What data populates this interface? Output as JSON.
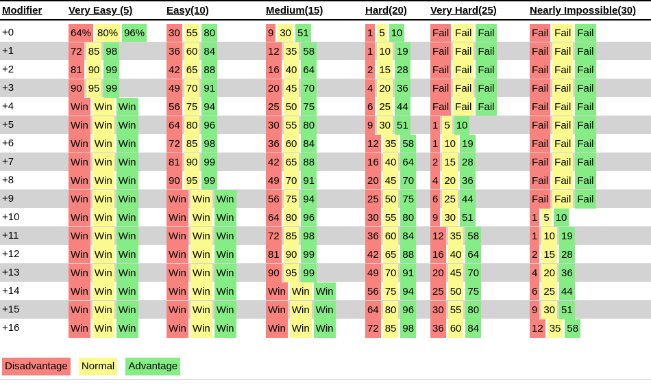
{
  "colors": {
    "disadvantage": "#F8837E",
    "normal": "#FAFA8E",
    "advantage": "#86EC86",
    "row_stripe": "#D3D3D3",
    "rule": "#000000",
    "bottom_rule": "#B9BFC6"
  },
  "chart_data": {
    "type": "table",
    "title": "d20 success probability by modifier, difficulty and roll mode",
    "columns": [
      "Modifier",
      "Very Easy (5)",
      "Easy(10)",
      "Medium(15)",
      "Hard(20)",
      "Very Hard(25)",
      "Nearly Impossible(30)"
    ],
    "value_kinds": [
      "Disadvantage",
      "Normal",
      "Advantage"
    ],
    "rows": [
      {
        "modifier": "+0",
        "cells": [
          [
            "64%",
            "80%",
            "96%"
          ],
          [
            "30",
            "55",
            "80"
          ],
          [
            "9",
            "30",
            "51"
          ],
          [
            "1",
            "5",
            "10"
          ],
          [
            "Fail",
            "Fail",
            "Fail"
          ],
          [
            "Fail",
            "Fail",
            "Fail"
          ]
        ]
      },
      {
        "modifier": "+1",
        "cells": [
          [
            "72",
            "85",
            "98"
          ],
          [
            "36",
            "60",
            "84"
          ],
          [
            "12",
            "35",
            "58"
          ],
          [
            "1",
            "10",
            "19"
          ],
          [
            "Fail",
            "Fail",
            "Fail"
          ],
          [
            "Fail",
            "Fail",
            "Fail"
          ]
        ]
      },
      {
        "modifier": "+2",
        "cells": [
          [
            "81",
            "90",
            "99"
          ],
          [
            "42",
            "65",
            "88"
          ],
          [
            "16",
            "40",
            "64"
          ],
          [
            "2",
            "15",
            "28"
          ],
          [
            "Fail",
            "Fail",
            "Fail"
          ],
          [
            "Fail",
            "Fail",
            "Fail"
          ]
        ]
      },
      {
        "modifier": "+3",
        "cells": [
          [
            "90",
            "95",
            "99"
          ],
          [
            "49",
            "70",
            "91"
          ],
          [
            "20",
            "45",
            "70"
          ],
          [
            "4",
            "20",
            "36"
          ],
          [
            "Fail",
            "Fail",
            "Fail"
          ],
          [
            "Fail",
            "Fail",
            "Fail"
          ]
        ]
      },
      {
        "modifier": "+4",
        "cells": [
          [
            "Win",
            "Win",
            "Win"
          ],
          [
            "56",
            "75",
            "94"
          ],
          [
            "25",
            "50",
            "75"
          ],
          [
            "6",
            "25",
            "44"
          ],
          [
            "Fail",
            "Fail",
            "Fail"
          ],
          [
            "Fail",
            "Fail",
            "Fail"
          ]
        ]
      },
      {
        "modifier": "+5",
        "cells": [
          [
            "Win",
            "Win",
            "Win"
          ],
          [
            "64",
            "80",
            "96"
          ],
          [
            "30",
            "55",
            "80"
          ],
          [
            "9",
            "30",
            "51"
          ],
          [
            "1",
            "5",
            "10"
          ],
          [
            "Fail",
            "Fail",
            "Fail"
          ]
        ]
      },
      {
        "modifier": "+6",
        "cells": [
          [
            "Win",
            "Win",
            "Win"
          ],
          [
            "72",
            "85",
            "98"
          ],
          [
            "36",
            "60",
            "84"
          ],
          [
            "12",
            "35",
            "58"
          ],
          [
            "1",
            "10",
            "19"
          ],
          [
            "Fail",
            "Fail",
            "Fail"
          ]
        ]
      },
      {
        "modifier": "+7",
        "cells": [
          [
            "Win",
            "Win",
            "Win"
          ],
          [
            "81",
            "90",
            "99"
          ],
          [
            "42",
            "65",
            "88"
          ],
          [
            "16",
            "40",
            "64"
          ],
          [
            "2",
            "15",
            "28"
          ],
          [
            "Fail",
            "Fail",
            "Fail"
          ]
        ]
      },
      {
        "modifier": "+8",
        "cells": [
          [
            "Win",
            "Win",
            "Win"
          ],
          [
            "90",
            "95",
            "99"
          ],
          [
            "49",
            "70",
            "91"
          ],
          [
            "20",
            "45",
            "70"
          ],
          [
            "4",
            "20",
            "36"
          ],
          [
            "Fail",
            "Fail",
            "Fail"
          ]
        ]
      },
      {
        "modifier": "+9",
        "cells": [
          [
            "Win",
            "Win",
            "Win"
          ],
          [
            "Win",
            "Win",
            "Win"
          ],
          [
            "56",
            "75",
            "94"
          ],
          [
            "25",
            "50",
            "75"
          ],
          [
            "6",
            "25",
            "44"
          ],
          [
            "Fail",
            "Fail",
            "Fail"
          ]
        ]
      },
      {
        "modifier": "+10",
        "cells": [
          [
            "Win",
            "Win",
            "Win"
          ],
          [
            "Win",
            "Win",
            "Win"
          ],
          [
            "64",
            "80",
            "96"
          ],
          [
            "30",
            "55",
            "80"
          ],
          [
            "9",
            "30",
            "51"
          ],
          [
            "1",
            "5",
            "10"
          ]
        ]
      },
      {
        "modifier": "+11",
        "cells": [
          [
            "Win",
            "Win",
            "Win"
          ],
          [
            "Win",
            "Win",
            "Win"
          ],
          [
            "72",
            "85",
            "98"
          ],
          [
            "36",
            "60",
            "84"
          ],
          [
            "12",
            "35",
            "58"
          ],
          [
            "1",
            "10",
            "19"
          ]
        ]
      },
      {
        "modifier": "+12",
        "cells": [
          [
            "Win",
            "Win",
            "Win"
          ],
          [
            "Win",
            "Win",
            "Win"
          ],
          [
            "81",
            "90",
            "99"
          ],
          [
            "42",
            "65",
            "88"
          ],
          [
            "16",
            "40",
            "64"
          ],
          [
            "2",
            "15",
            "28"
          ]
        ]
      },
      {
        "modifier": "+13",
        "cells": [
          [
            "Win",
            "Win",
            "Win"
          ],
          [
            "Win",
            "Win",
            "Win"
          ],
          [
            "90",
            "95",
            "99"
          ],
          [
            "49",
            "70",
            "91"
          ],
          [
            "20",
            "45",
            "70"
          ],
          [
            "4",
            "20",
            "36"
          ]
        ]
      },
      {
        "modifier": "+14",
        "cells": [
          [
            "Win",
            "Win",
            "Win"
          ],
          [
            "Win",
            "Win",
            "Win"
          ],
          [
            "Win",
            "Win",
            "Win"
          ],
          [
            "56",
            "75",
            "94"
          ],
          [
            "25",
            "50",
            "75"
          ],
          [
            "6",
            "25",
            "44"
          ]
        ]
      },
      {
        "modifier": "+15",
        "cells": [
          [
            "Win",
            "Win",
            "Win"
          ],
          [
            "Win",
            "Win",
            "Win"
          ],
          [
            "Win",
            "Win",
            "Win"
          ],
          [
            "64",
            "80",
            "96"
          ],
          [
            "30",
            "55",
            "80"
          ],
          [
            "9",
            "30",
            "51"
          ]
        ]
      },
      {
        "modifier": "+16",
        "cells": [
          [
            "Win",
            "Win",
            "Win"
          ],
          [
            "Win",
            "Win",
            "Win"
          ],
          [
            "Win",
            "Win",
            "Win"
          ],
          [
            "72",
            "85",
            "98"
          ],
          [
            "36",
            "60",
            "84"
          ],
          [
            "12",
            "35",
            "58"
          ]
        ]
      }
    ],
    "legend": [
      {
        "label": "Disadvantage",
        "color_key": "disadvantage"
      },
      {
        "label": "Normal",
        "color_key": "normal"
      },
      {
        "label": "Advantage",
        "color_key": "advantage"
      }
    ]
  }
}
